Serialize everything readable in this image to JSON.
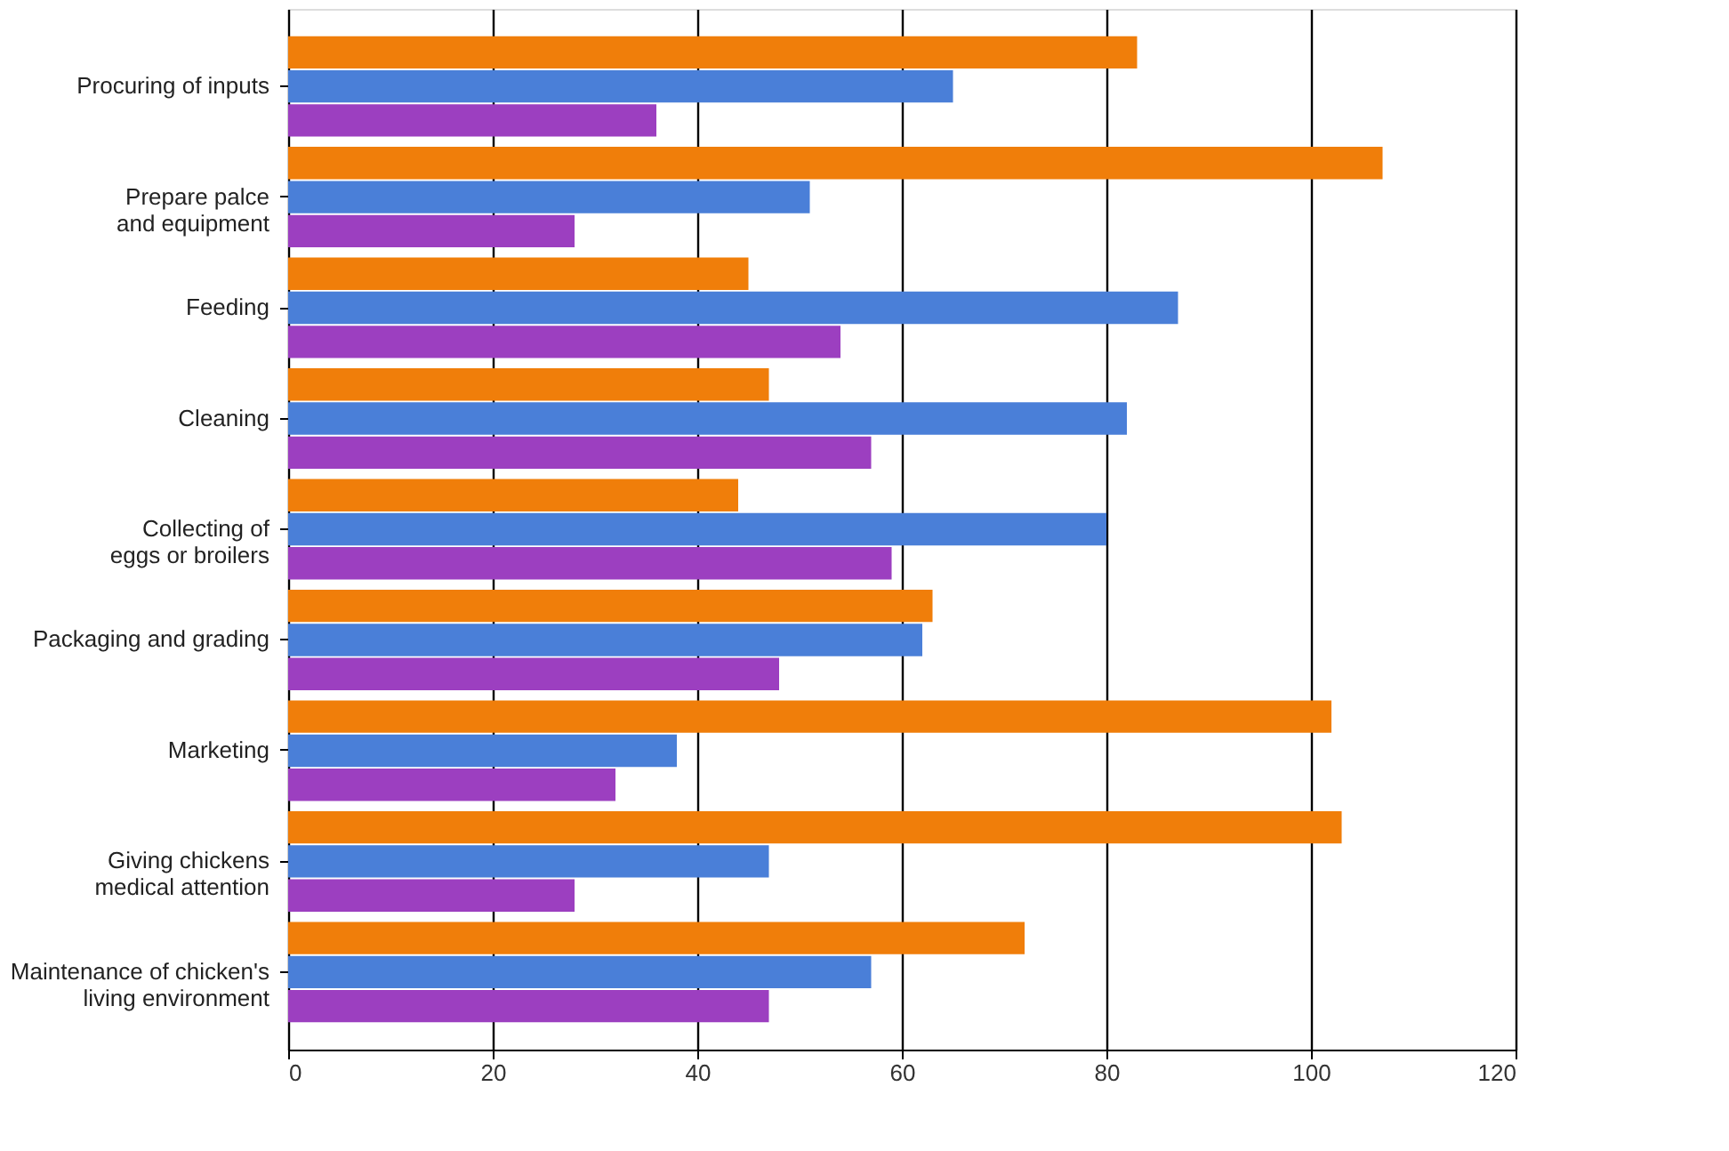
{
  "chart_data": {
    "type": "bar",
    "orientation": "horizontal",
    "categories": [
      "Procuring of inputs",
      "Prepare palce\nand equipment",
      "Feeding",
      "Cleaning",
      "Collecting of\neggs or broilers",
      "Packaging and grading",
      "Marketing",
      "Giving chickens\nmedical attention",
      "Maintenance of chicken's\nliving environment"
    ],
    "series": [
      {
        "color": "#f07e0a",
        "values": [
          83,
          107,
          45,
          47,
          44,
          63,
          102,
          103,
          72
        ]
      },
      {
        "color": "#4a7fd8",
        "values": [
          65,
          51,
          87,
          82,
          80,
          62,
          38,
          47,
          57
        ]
      },
      {
        "color": "#9c3fc0",
        "values": [
          36,
          28,
          54,
          57,
          59,
          48,
          32,
          28,
          47
        ]
      }
    ],
    "xlim": [
      0,
      120
    ],
    "xticks": [
      0,
      20,
      40,
      60,
      80,
      100,
      120
    ],
    "grid": "x"
  }
}
